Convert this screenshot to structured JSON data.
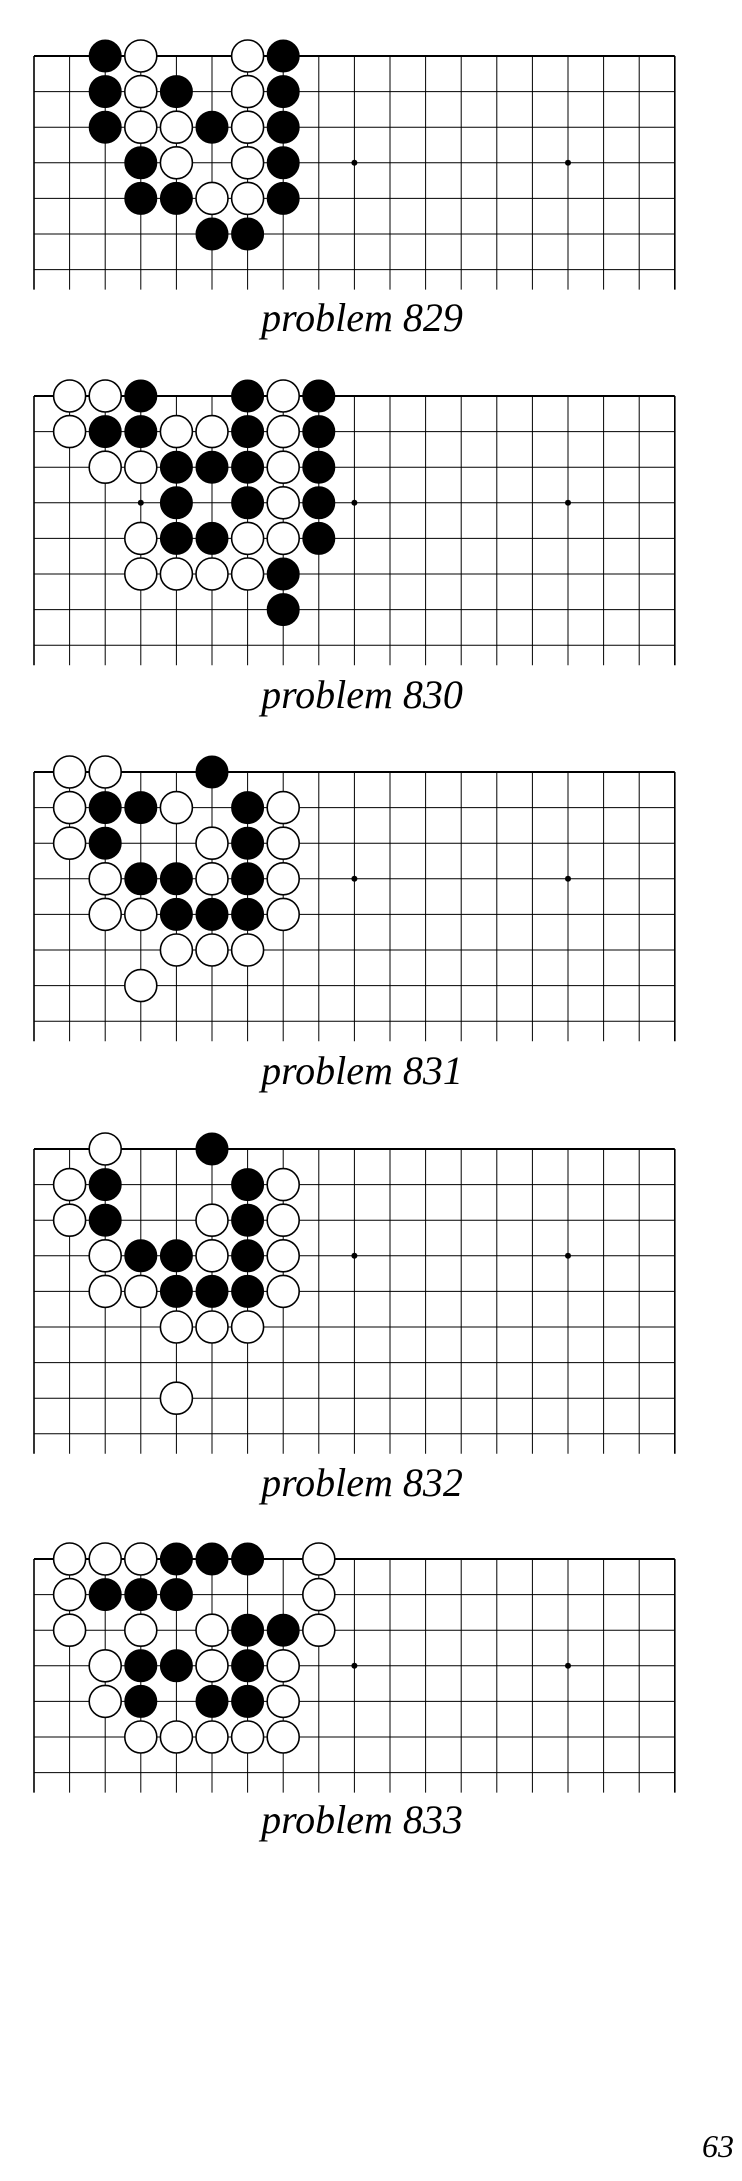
{
  "problems": [
    {
      "caption": "problem 829",
      "black": [
        [
          2,
          0
        ],
        [
          7,
          0
        ],
        [
          2,
          1
        ],
        [
          4,
          1
        ],
        [
          7,
          1
        ],
        [
          2,
          2
        ],
        [
          5,
          2
        ],
        [
          7,
          2
        ],
        [
          3,
          3
        ],
        [
          7,
          3
        ],
        [
          3,
          4
        ],
        [
          4,
          4
        ],
        [
          7,
          4
        ],
        [
          5,
          5
        ],
        [
          6,
          5
        ]
      ],
      "white": [
        [
          3,
          0
        ],
        [
          6,
          0
        ],
        [
          3,
          1
        ],
        [
          6,
          1
        ],
        [
          3,
          2
        ],
        [
          4,
          2
        ],
        [
          6,
          2
        ],
        [
          4,
          3
        ],
        [
          6,
          3
        ],
        [
          5,
          4
        ],
        [
          6,
          4
        ]
      ]
    },
    {
      "caption": "problem 830",
      "black": [
        [
          3,
          0
        ],
        [
          6,
          0
        ],
        [
          8,
          0
        ],
        [
          2,
          1
        ],
        [
          3,
          1
        ],
        [
          6,
          1
        ],
        [
          8,
          1
        ],
        [
          4,
          2
        ],
        [
          5,
          2
        ],
        [
          6,
          2
        ],
        [
          8,
          2
        ],
        [
          4,
          3
        ],
        [
          6,
          3
        ],
        [
          8,
          3
        ],
        [
          4,
          4
        ],
        [
          5,
          4
        ],
        [
          8,
          4
        ],
        [
          7,
          5
        ],
        [
          7,
          6
        ]
      ],
      "white": [
        [
          1,
          0
        ],
        [
          2,
          0
        ],
        [
          7,
          0
        ],
        [
          1,
          1
        ],
        [
          4,
          1
        ],
        [
          5,
          1
        ],
        [
          7,
          1
        ],
        [
          2,
          2
        ],
        [
          3,
          2
        ],
        [
          7,
          2
        ],
        [
          7,
          3
        ],
        [
          3,
          4
        ],
        [
          6,
          4
        ],
        [
          7,
          4
        ],
        [
          3,
          5
        ],
        [
          4,
          5
        ],
        [
          5,
          5
        ],
        [
          6,
          5
        ]
      ]
    },
    {
      "caption": "problem 831",
      "black": [
        [
          5,
          0
        ],
        [
          2,
          1
        ],
        [
          3,
          1
        ],
        [
          6,
          1
        ],
        [
          2,
          2
        ],
        [
          6,
          2
        ],
        [
          3,
          3
        ],
        [
          4,
          3
        ],
        [
          6,
          3
        ],
        [
          4,
          4
        ],
        [
          5,
          4
        ],
        [
          6,
          4
        ]
      ],
      "white": [
        [
          1,
          0
        ],
        [
          2,
          0
        ],
        [
          1,
          1
        ],
        [
          4,
          1
        ],
        [
          7,
          1
        ],
        [
          1,
          2
        ],
        [
          5,
          2
        ],
        [
          7,
          2
        ],
        [
          2,
          3
        ],
        [
          5,
          3
        ],
        [
          7,
          3
        ],
        [
          2,
          4
        ],
        [
          3,
          4
        ],
        [
          7,
          4
        ],
        [
          4,
          5
        ],
        [
          5,
          5
        ],
        [
          6,
          5
        ],
        [
          3,
          6
        ]
      ]
    },
    {
      "caption": "problem 832",
      "black": [
        [
          5,
          0
        ],
        [
          2,
          1
        ],
        [
          6,
          1
        ],
        [
          2,
          2
        ],
        [
          6,
          2
        ],
        [
          3,
          3
        ],
        [
          4,
          3
        ],
        [
          6,
          3
        ],
        [
          4,
          4
        ],
        [
          5,
          4
        ],
        [
          6,
          4
        ]
      ],
      "white": [
        [
          2,
          0
        ],
        [
          1,
          1
        ],
        [
          7,
          1
        ],
        [
          1,
          2
        ],
        [
          5,
          2
        ],
        [
          7,
          2
        ],
        [
          2,
          3
        ],
        [
          5,
          3
        ],
        [
          7,
          3
        ],
        [
          2,
          4
        ],
        [
          3,
          4
        ],
        [
          7,
          4
        ],
        [
          4,
          5
        ],
        [
          5,
          5
        ],
        [
          6,
          5
        ],
        [
          4,
          7
        ]
      ]
    },
    {
      "caption": "problem 833",
      "black": [
        [
          4,
          0
        ],
        [
          5,
          0
        ],
        [
          6,
          0
        ],
        [
          2,
          1
        ],
        [
          3,
          1
        ],
        [
          4,
          1
        ],
        [
          6,
          2
        ],
        [
          7,
          2
        ],
        [
          3,
          3
        ],
        [
          4,
          3
        ],
        [
          6,
          3
        ],
        [
          3,
          4
        ],
        [
          5,
          4
        ],
        [
          6,
          4
        ]
      ],
      "white": [
        [
          1,
          0
        ],
        [
          2,
          0
        ],
        [
          3,
          0
        ],
        [
          8,
          0
        ],
        [
          1,
          1
        ],
        [
          8,
          1
        ],
        [
          1,
          2
        ],
        [
          3,
          2
        ],
        [
          5,
          2
        ],
        [
          8,
          2
        ],
        [
          2,
          3
        ],
        [
          5,
          3
        ],
        [
          7,
          3
        ],
        [
          2,
          4
        ],
        [
          7,
          4
        ],
        [
          3,
          5
        ],
        [
          4,
          5
        ],
        [
          5,
          5
        ],
        [
          6,
          5
        ],
        [
          7,
          5
        ]
      ]
    }
  ],
  "page_number": "63"
}
